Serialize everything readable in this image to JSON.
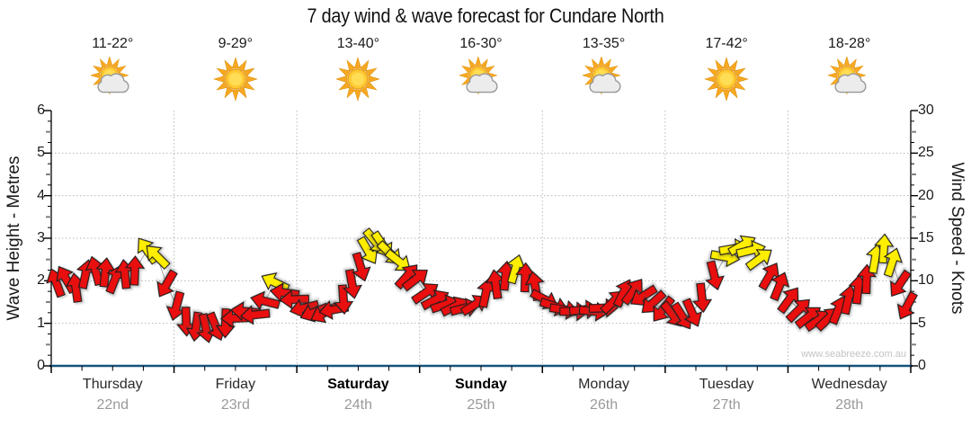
{
  "title": "7 day wind & wave forecast for Cundare North",
  "watermark": "www.seabreeze.com.au",
  "axes": {
    "left_title": "Wave Height - Metres",
    "right_title": "Wind Speed - Knots",
    "left_ticks": [
      "0",
      "1",
      "2",
      "3",
      "4",
      "5",
      "6"
    ],
    "right_ticks": [
      "0",
      "5",
      "10",
      "15",
      "20",
      "25",
      "30"
    ]
  },
  "days": [
    {
      "name": "Thursday",
      "date": "22nd",
      "temp": "11-22°",
      "icon": "partly-cloudy-icon",
      "weekend": false
    },
    {
      "name": "Friday",
      "date": "23rd",
      "temp": "9-29°",
      "icon": "sunny-icon",
      "weekend": false
    },
    {
      "name": "Saturday",
      "date": "24th",
      "temp": "13-40°",
      "icon": "sunny-icon",
      "weekend": true
    },
    {
      "name": "Sunday",
      "date": "25th",
      "temp": "16-30°",
      "icon": "partly-cloudy-icon",
      "weekend": true
    },
    {
      "name": "Monday",
      "date": "26th",
      "temp": "13-35°",
      "icon": "partly-cloudy-icon",
      "weekend": false
    },
    {
      "name": "Tuesday",
      "date": "27th",
      "temp": "17-42°",
      "icon": "sunny-icon",
      "weekend": false
    },
    {
      "name": "Wednesday",
      "date": "28th",
      "temp": "18-28°",
      "icon": "partly-cloudy-icon",
      "weekend": false
    }
  ],
  "colors": {
    "arrow_red": "#e90f0f",
    "arrow_yellow": "#ffee00",
    "arrow_outline": "#1b1b1b",
    "bottom_axis": "#16537e",
    "grid": "#b8b8b8",
    "connector": "#a0a0a0",
    "date_text": "#9a9a9a",
    "watermark": "#c3c3c3"
  },
  "chart_data": {
    "type": "scatter",
    "marker": "wind-arrow",
    "title": "7 day wind & wave forecast for Cundare North",
    "x_axis": {
      "unit": "days",
      "range": [
        0,
        7
      ],
      "day_labels": [
        "Thursday 22nd",
        "Friday 23rd",
        "Saturday 24th",
        "Sunday 25th",
        "Monday 26th",
        "Tuesday 27th",
        "Wednesday 28th"
      ]
    },
    "y_left_axis": {
      "label": "Wave Height - Metres",
      "min": 0,
      "max": 6,
      "ticks": [
        0,
        1,
        2,
        3,
        4,
        5,
        6
      ]
    },
    "y_right_axis": {
      "label": "Wind Speed - Knots",
      "min": 0,
      "max": 30,
      "ticks": [
        0,
        5,
        10,
        15,
        20,
        25,
        30
      ]
    },
    "grid": true,
    "legend": null,
    "daily_temps_c": [
      "11-22",
      "9-29",
      "13-40",
      "16-30",
      "13-35",
      "17-42",
      "18-28"
    ],
    "daily_sky": [
      "partly-cloudy",
      "sunny",
      "sunny",
      "partly-cloudy",
      "partly-cloudy",
      "sunny",
      "partly-cloudy"
    ],
    "points_format": [
      "day_offset",
      "wind_speed_knots",
      "arrow_direction_deg_cw_from_up",
      "color(r=red,y=yellow_gust)"
    ],
    "points": [
      [
        0.04,
        9.8,
        -20,
        "r"
      ],
      [
        0.12,
        10.2,
        -30,
        "r"
      ],
      [
        0.2,
        9.2,
        -8,
        "r"
      ],
      [
        0.28,
        10.8,
        12,
        "r"
      ],
      [
        0.36,
        11.2,
        -15,
        "r"
      ],
      [
        0.44,
        11.0,
        6,
        "r"
      ],
      [
        0.52,
        10.2,
        22,
        "r"
      ],
      [
        0.6,
        10.8,
        -6,
        "r"
      ],
      [
        0.68,
        11.2,
        2,
        "r"
      ],
      [
        0.78,
        13.6,
        -35,
        "y"
      ],
      [
        0.86,
        12.9,
        -45,
        "y"
      ],
      [
        0.94,
        9.6,
        -150,
        "r"
      ],
      [
        1.02,
        7.0,
        -165,
        "r"
      ],
      [
        1.1,
        5.2,
        178,
        "r"
      ],
      [
        1.18,
        4.6,
        -172,
        "r"
      ],
      [
        1.26,
        4.4,
        168,
        "r"
      ],
      [
        1.34,
        4.6,
        158,
        "r"
      ],
      [
        1.42,
        5.0,
        -178,
        "r"
      ],
      [
        1.5,
        5.6,
        -92,
        "r"
      ],
      [
        1.58,
        6.4,
        -84,
        "r"
      ],
      [
        1.66,
        6.0,
        -96,
        "r"
      ],
      [
        1.74,
        7.6,
        -76,
        "r"
      ],
      [
        1.82,
        9.8,
        -64,
        "y"
      ],
      [
        1.9,
        8.6,
        -82,
        "r"
      ],
      [
        1.98,
        7.8,
        -92,
        "r"
      ],
      [
        2.06,
        6.8,
        -104,
        "r"
      ],
      [
        2.14,
        6.3,
        -112,
        "r"
      ],
      [
        2.22,
        6.2,
        -118,
        "r"
      ],
      [
        2.3,
        6.6,
        -100,
        "r"
      ],
      [
        2.38,
        7.8,
        176,
        "r"
      ],
      [
        2.45,
        9.6,
        170,
        "r"
      ],
      [
        2.52,
        11.6,
        163,
        "r"
      ],
      [
        2.58,
        13.5,
        150,
        "y"
      ],
      [
        2.64,
        14.6,
        140,
        "y"
      ],
      [
        2.7,
        14.2,
        146,
        "y"
      ],
      [
        2.76,
        13.2,
        134,
        "y"
      ],
      [
        2.83,
        12.3,
        128,
        "y"
      ],
      [
        2.9,
        10.6,
        42,
        "r"
      ],
      [
        2.97,
        10.2,
        52,
        "r"
      ],
      [
        3.05,
        8.6,
        56,
        "r"
      ],
      [
        3.13,
        7.8,
        62,
        "r"
      ],
      [
        3.21,
        7.2,
        72,
        "r"
      ],
      [
        3.29,
        7.0,
        64,
        "r"
      ],
      [
        3.37,
        6.8,
        76,
        "r"
      ],
      [
        3.45,
        7.2,
        58,
        "r"
      ],
      [
        3.54,
        8.6,
        12,
        "r"
      ],
      [
        3.62,
        9.6,
        -8,
        "r"
      ],
      [
        3.7,
        10.6,
        6,
        "r"
      ],
      [
        3.78,
        11.4,
        16,
        "y"
      ],
      [
        3.86,
        10.4,
        2,
        "r"
      ],
      [
        3.94,
        9.4,
        -10,
        "r"
      ],
      [
        4.02,
        7.8,
        118,
        "r"
      ],
      [
        4.1,
        7.0,
        108,
        "r"
      ],
      [
        4.18,
        6.6,
        98,
        "r"
      ],
      [
        4.26,
        6.4,
        90,
        "r"
      ],
      [
        4.34,
        6.6,
        84,
        "r"
      ],
      [
        4.42,
        6.4,
        96,
        "r"
      ],
      [
        4.5,
        6.8,
        88,
        "r"
      ],
      [
        4.58,
        7.6,
        46,
        "r"
      ],
      [
        4.66,
        8.6,
        26,
        "r"
      ],
      [
        4.74,
        8.8,
        36,
        "r"
      ],
      [
        4.82,
        8.2,
        -122,
        "r"
      ],
      [
        4.9,
        7.4,
        -132,
        "r"
      ],
      [
        4.98,
        6.6,
        -142,
        "r"
      ],
      [
        5.06,
        6.0,
        142,
        "r"
      ],
      [
        5.14,
        5.8,
        148,
        "r"
      ],
      [
        5.22,
        6.2,
        156,
        "r"
      ],
      [
        5.3,
        8.0,
        174,
        "r"
      ],
      [
        5.4,
        10.6,
        166,
        "r"
      ],
      [
        5.49,
        12.8,
        100,
        "y"
      ],
      [
        5.56,
        13.8,
        80,
        "y"
      ],
      [
        5.63,
        14.2,
        60,
        "y"
      ],
      [
        5.7,
        13.6,
        76,
        "y"
      ],
      [
        5.77,
        12.6,
        54,
        "y"
      ],
      [
        5.85,
        10.6,
        30,
        "r"
      ],
      [
        5.93,
        9.4,
        22,
        "r"
      ],
      [
        6.01,
        7.8,
        36,
        "r"
      ],
      [
        6.09,
        6.6,
        46,
        "r"
      ],
      [
        6.17,
        5.8,
        52,
        "r"
      ],
      [
        6.25,
        5.4,
        56,
        "r"
      ],
      [
        6.33,
        5.6,
        46,
        "r"
      ],
      [
        6.41,
        6.6,
        22,
        "r"
      ],
      [
        6.49,
        7.8,
        12,
        "r"
      ],
      [
        6.57,
        9.0,
        6,
        "r"
      ],
      [
        6.64,
        10.2,
        2,
        "r"
      ],
      [
        6.71,
        12.6,
        10,
        "y"
      ],
      [
        6.78,
        13.8,
        4,
        "y"
      ],
      [
        6.85,
        12.2,
        18,
        "y"
      ],
      [
        6.91,
        9.6,
        -146,
        "r"
      ],
      [
        6.97,
        7.0,
        -152,
        "r"
      ]
    ]
  }
}
